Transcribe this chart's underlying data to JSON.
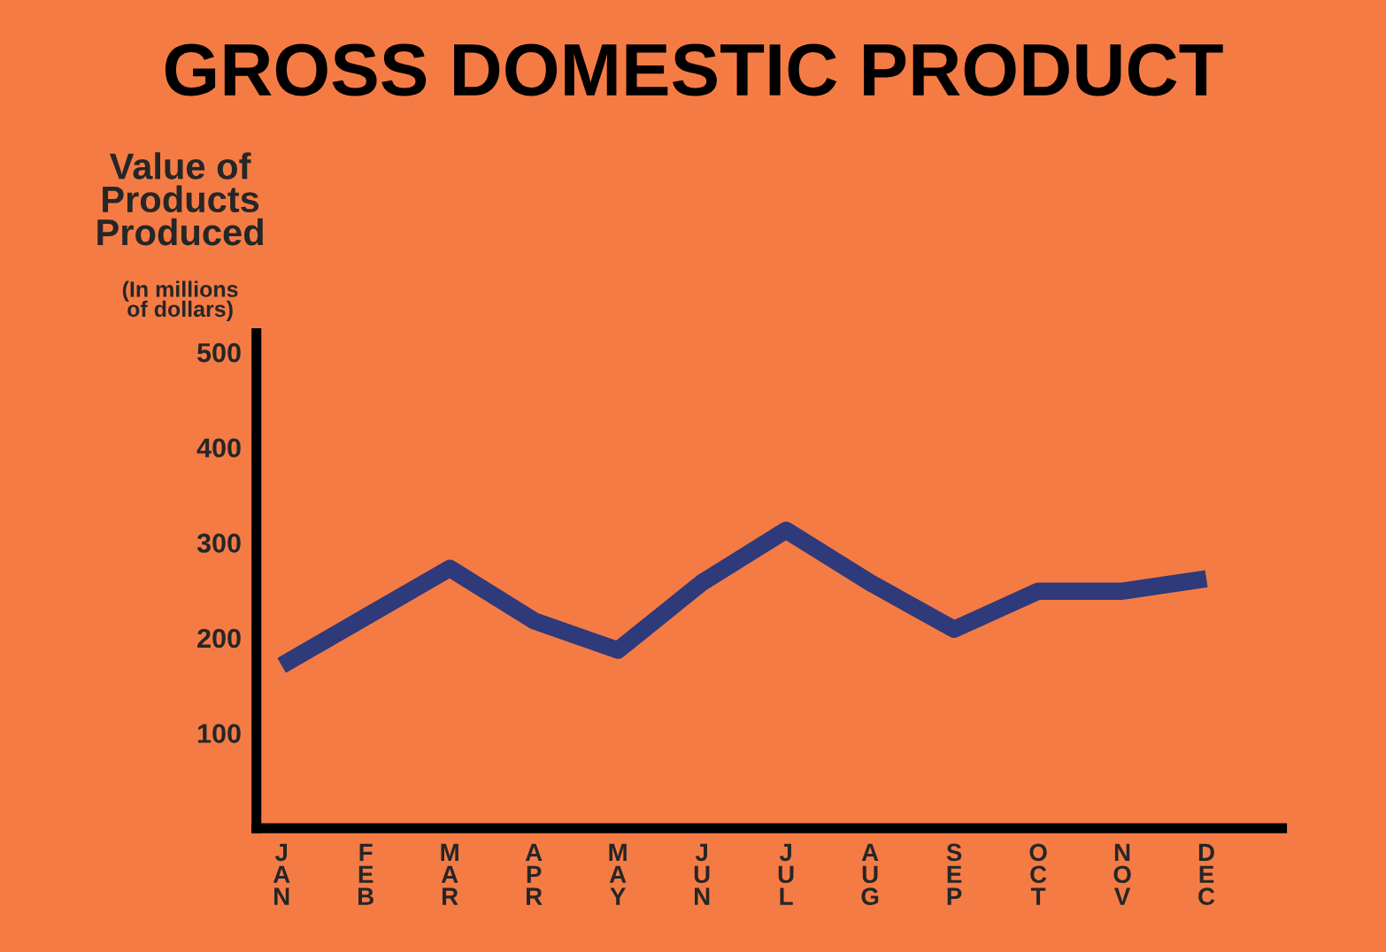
{
  "chart_data": {
    "type": "line",
    "title": "GROSS DOMESTIC PRODUCT",
    "ylabel": "Value of Products Produced",
    "annotations": [
      "(In millions of dollars)"
    ],
    "categories": [
      "JAN",
      "FEB",
      "MAR",
      "APR",
      "MAY",
      "JUN",
      "JUL",
      "AUG",
      "SEP",
      "OCT",
      "NOV",
      "DEC"
    ],
    "series": [
      {
        "color": "#2e3a7a",
        "values": [
          171,
          222,
          273,
          218,
          187,
          258,
          313,
          258,
          209,
          249,
          249,
          262
        ]
      }
    ],
    "ylim": [
      0,
      520
    ],
    "yticks": [
      100,
      200,
      300,
      400,
      500
    ],
    "grid": false,
    "marker": "none",
    "line_style": "solid"
  }
}
